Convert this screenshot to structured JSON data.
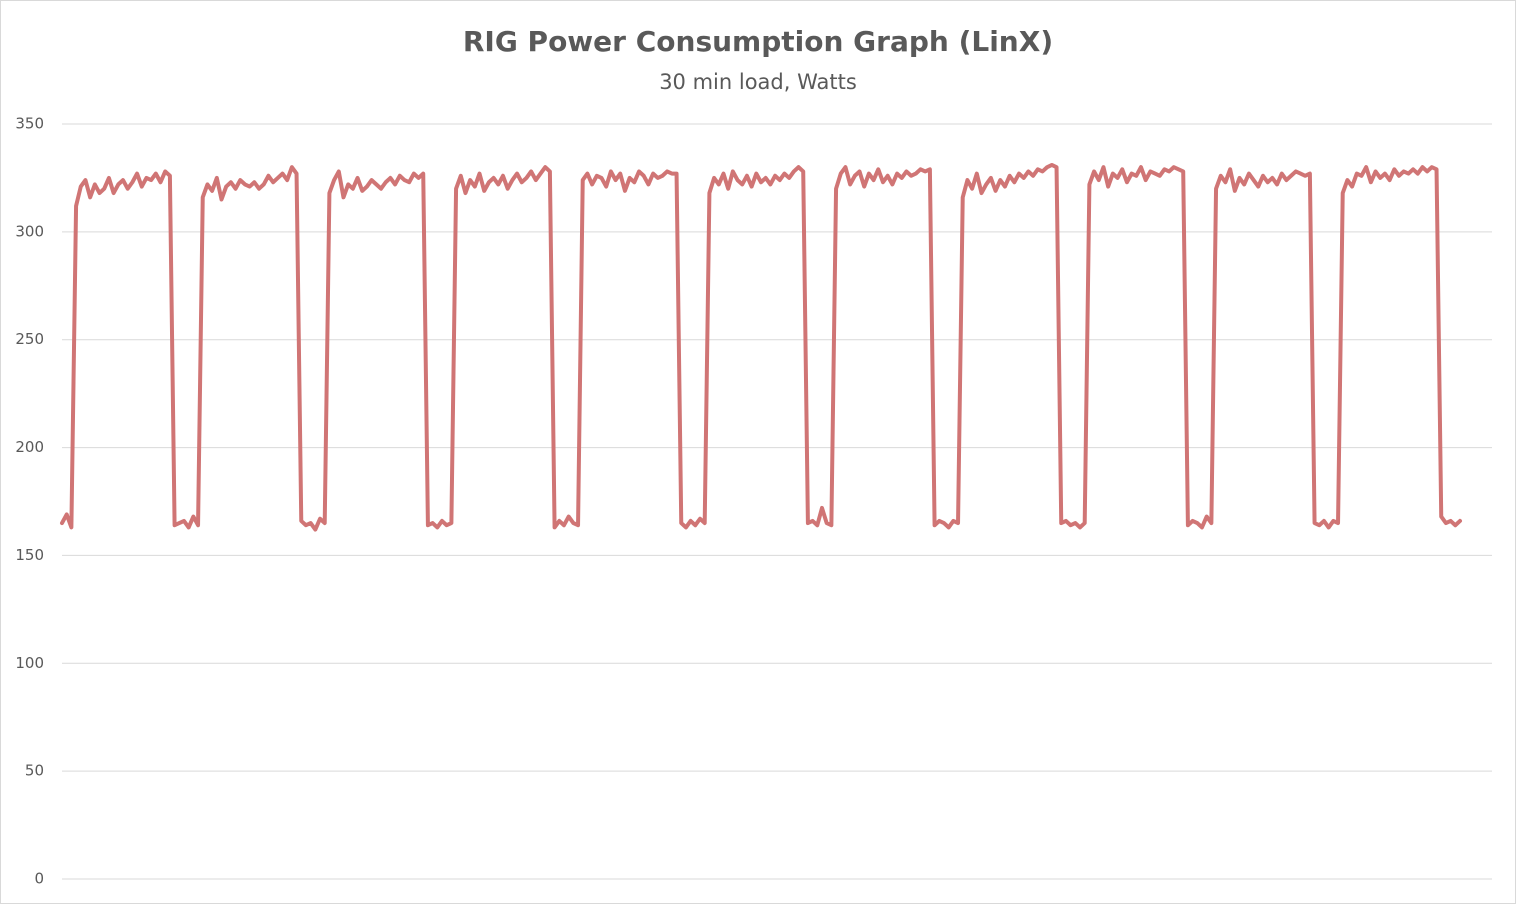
{
  "chart_data": {
    "type": "line",
    "title": "RIG Power Consumption Graph (LinX)",
    "subtitle": "30 min load, Watts",
    "color": "#d07575",
    "ylim": [
      0,
      350
    ],
    "yticks": [
      0,
      50,
      100,
      150,
      200,
      250,
      300,
      350
    ],
    "grid": true,
    "values": [
      165,
      169,
      163,
      312,
      321,
      324,
      316,
      322,
      318,
      320,
      325,
      318,
      322,
      324,
      320,
      323,
      327,
      321,
      325,
      324,
      327,
      323,
      328,
      326,
      164,
      165,
      166,
      163,
      168,
      164,
      316,
      322,
      319,
      325,
      315,
      321,
      323,
      320,
      324,
      322,
      321,
      323,
      320,
      322,
      326,
      323,
      325,
      327,
      324,
      330,
      327,
      166,
      164,
      165,
      162,
      167,
      165,
      318,
      324,
      328,
      316,
      322,
      320,
      325,
      319,
      321,
      324,
      322,
      320,
      323,
      325,
      322,
      326,
      324,
      323,
      327,
      325,
      327,
      164,
      165,
      163,
      166,
      164,
      165,
      320,
      326,
      318,
      324,
      321,
      327,
      319,
      323,
      325,
      322,
      326,
      320,
      324,
      327,
      323,
      325,
      328,
      324,
      327,
      330,
      328,
      163,
      166,
      164,
      168,
      165,
      164,
      324,
      327,
      322,
      326,
      325,
      321,
      328,
      324,
      327,
      319,
      325,
      323,
      328,
      326,
      322,
      327,
      325,
      326,
      328,
      327,
      327,
      165,
      163,
      166,
      164,
      167,
      165,
      318,
      325,
      322,
      327,
      320,
      328,
      324,
      322,
      326,
      321,
      327,
      323,
      325,
      322,
      326,
      324,
      327,
      325,
      328,
      330,
      328,
      165,
      166,
      164,
      172,
      165,
      164,
      320,
      327,
      330,
      322,
      326,
      328,
      321,
      327,
      324,
      329,
      323,
      326,
      322,
      327,
      325,
      328,
      326,
      327,
      329,
      328,
      329,
      164,
      166,
      165,
      163,
      166,
      165,
      316,
      324,
      320,
      327,
      318,
      322,
      325,
      319,
      324,
      321,
      326,
      323,
      327,
      325,
      328,
      326,
      329,
      328,
      330,
      331,
      330,
      165,
      166,
      164,
      165,
      163,
      165,
      322,
      328,
      324,
      330,
      321,
      327,
      325,
      329,
      323,
      327,
      326,
      330,
      324,
      328,
      327,
      326,
      329,
      328,
      330,
      329,
      328,
      164,
      166,
      165,
      163,
      168,
      165,
      320,
      326,
      323,
      329,
      319,
      325,
      322,
      327,
      324,
      321,
      326,
      323,
      325,
      322,
      327,
      324,
      326,
      328,
      327,
      326,
      327,
      165,
      164,
      166,
      163,
      166,
      165,
      318,
      324,
      321,
      327,
      326,
      330,
      323,
      328,
      325,
      327,
      324,
      329,
      326,
      328,
      327,
      329,
      327,
      330,
      328,
      330,
      329,
      168,
      165,
      166,
      164,
      166
    ]
  }
}
